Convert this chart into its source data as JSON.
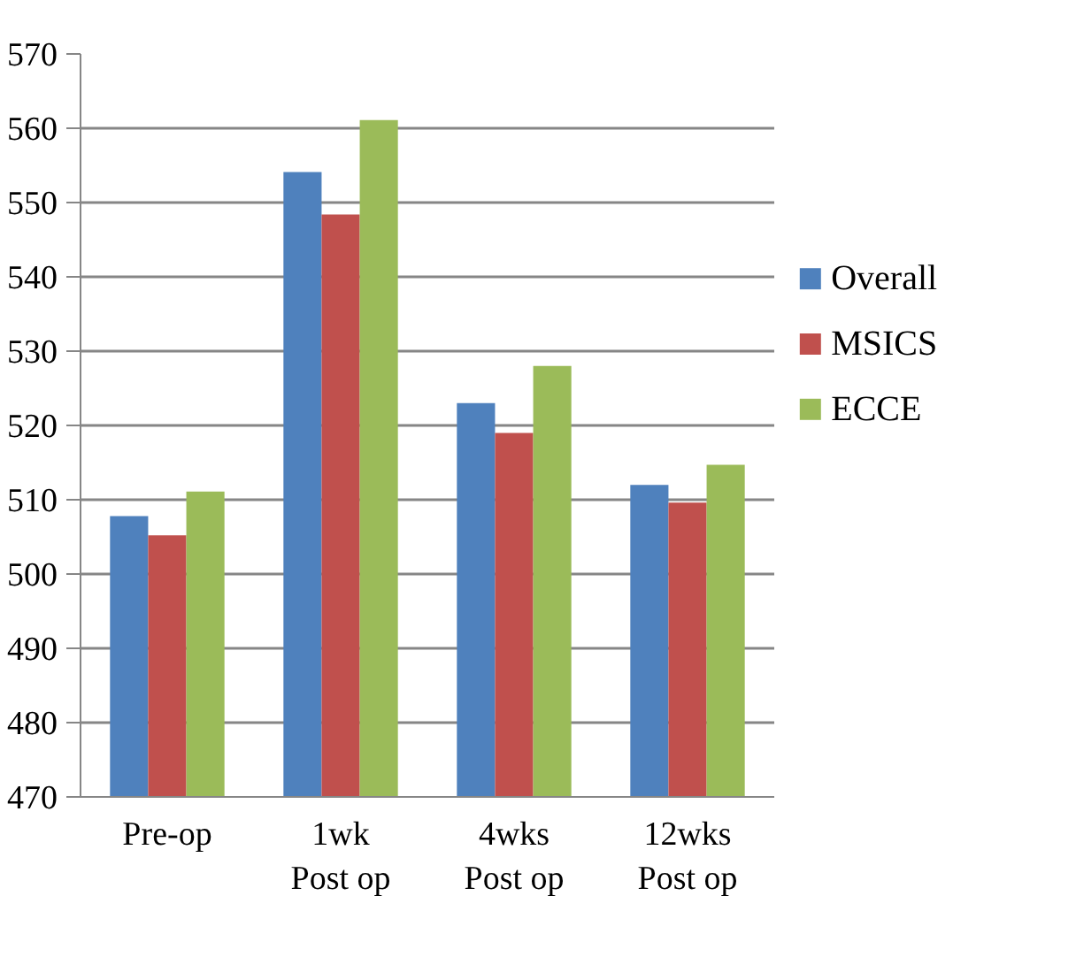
{
  "chart_data": {
    "type": "bar",
    "categories": [
      "Pre-op",
      "1wk\nPost op",
      "4wks\nPost op",
      "12wks\nPost op"
    ],
    "series": [
      {
        "name": "Overall",
        "color": "#4f81bd",
        "values": [
          507.8,
          554.1,
          523.0,
          512.0
        ]
      },
      {
        "name": "MSICS",
        "color": "#c0504d",
        "values": [
          505.2,
          548.4,
          519.0,
          509.6
        ]
      },
      {
        "name": "ECCE",
        "color": "#9bbb59",
        "values": [
          511.1,
          561.1,
          528.0,
          514.7
        ]
      }
    ],
    "ylim": [
      470,
      570
    ],
    "yticks": [
      470,
      480,
      490,
      500,
      510,
      520,
      530,
      540,
      550,
      560,
      570
    ],
    "grid": "y",
    "legend": "right"
  }
}
